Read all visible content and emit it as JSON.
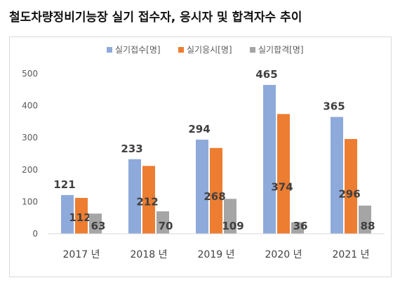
{
  "header": {
    "title": "철도차량정비기능장 실기 접수자, 응시자 및 합격자수 추이"
  },
  "chart_data": {
    "type": "bar",
    "title": "철도차량정비기능장 실기 접수자, 응시자 및 합격자수 추이",
    "categories": [
      "2017 년",
      "2018 년",
      "2019 년",
      "2020 년",
      "2021 년"
    ],
    "series": [
      {
        "name": "실기접수[명]",
        "values": [
          121,
          233,
          294,
          465,
          365
        ],
        "color": "#8eaadb"
      },
      {
        "name": "실기응시[명]",
        "values": [
          112,
          212,
          268,
          374,
          296
        ],
        "color": "#ed7d31"
      },
      {
        "name": "실기합격[명]",
        "values": [
          63,
          70,
          109,
          36,
          88
        ],
        "color": "#a5a5a5"
      }
    ],
    "ylim": [
      0,
      500
    ],
    "yticks": [
      "0",
      "100",
      "200",
      "300",
      "400",
      "500"
    ],
    "xlabel": "",
    "ylabel": "",
    "grid": false,
    "legend_position": "top"
  }
}
